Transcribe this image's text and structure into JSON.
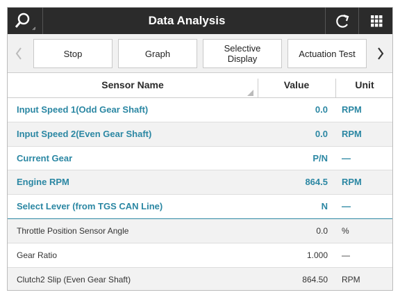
{
  "header": {
    "title": "Data Analysis"
  },
  "toolbar": {
    "buttons": [
      "Stop",
      "Graph",
      "Selective Display",
      "Actuation Test"
    ]
  },
  "table": {
    "columns": [
      "Sensor Name",
      "Value",
      "Unit"
    ],
    "rows": [
      [
        "Input Speed 1(Odd Gear Shaft)",
        "0.0",
        "RPM"
      ],
      [
        "Input Speed 2(Even Gear Shaft)",
        "0.0",
        "RPM"
      ],
      [
        "Current Gear",
        "P/N",
        "—"
      ],
      [
        "Engine RPM",
        "864.5",
        "RPM"
      ],
      [
        "Select Lever (from TGS CAN Line)",
        "N",
        "—"
      ],
      [
        "Throttle Position Sensor Angle",
        "0.0",
        "%"
      ],
      [
        "Gear Ratio",
        "1.000",
        "—"
      ],
      [
        "Clutch2 Slip (Even Gear Shaft)",
        "864.50",
        "RPM"
      ]
    ]
  }
}
